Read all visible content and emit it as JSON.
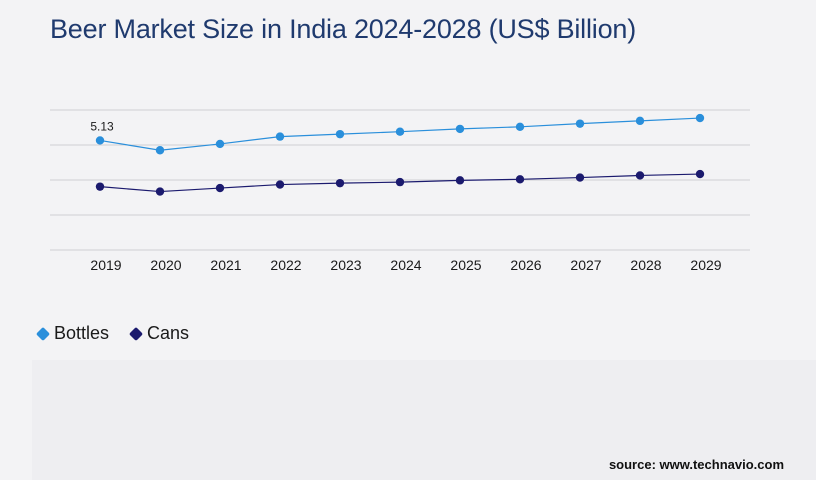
{
  "title": "Beer Market Size in India 2024-2028 (US$ Billion)",
  "source": "source: www.technavio.com",
  "colors": {
    "bottles": "#2a8fdb",
    "cans": "#1b1a6e",
    "grid": "#cfcfd4"
  },
  "chart_data": {
    "type": "line",
    "title": "Beer Market Size in India 2024-2028 (US$ Billion)",
    "categories": [
      "2019",
      "2020",
      "2021",
      "2022",
      "2023",
      "2024",
      "2025",
      "2026",
      "2027",
      "2028",
      "2029"
    ],
    "series": [
      {
        "name": "Bottles",
        "values": [
          5.13,
          4.85,
          5.03,
          5.24,
          5.31,
          5.38,
          5.46,
          5.52,
          5.61,
          5.69,
          5.77
        ],
        "color": "#2a8fdb"
      },
      {
        "name": "Cans",
        "values": [
          3.81,
          3.67,
          3.77,
          3.87,
          3.91,
          3.94,
          3.99,
          4.02,
          4.07,
          4.13,
          4.17
        ],
        "color": "#1b1a6e"
      }
    ],
    "data_labels": [
      {
        "series": "Bottles",
        "index": 0,
        "text": "5.13"
      }
    ],
    "ylim": [
      1.0,
      6.0
    ],
    "grid": true,
    "legend": "bottom-left",
    "xlabel": "",
    "ylabel": ""
  }
}
